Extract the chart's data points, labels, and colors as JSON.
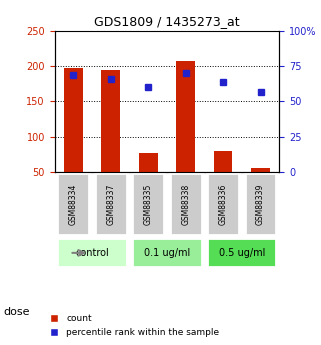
{
  "title": "GDS1809 / 1435273_at",
  "samples": [
    "GSM88334",
    "GSM88337",
    "GSM88335",
    "GSM88338",
    "GSM88336",
    "GSM88339"
  ],
  "counts": [
    197,
    195,
    77,
    208,
    80,
    55
  ],
  "percentile_ranks": [
    69,
    66,
    60,
    70,
    64,
    57
  ],
  "ylim_left": [
    50,
    250
  ],
  "ylim_right": [
    0,
    100
  ],
  "yticks_left": [
    50,
    100,
    150,
    200,
    250
  ],
  "yticks_right": [
    0,
    25,
    50,
    75,
    100
  ],
  "ytick_labels_left": [
    "50",
    "100",
    "150",
    "200",
    "250"
  ],
  "ytick_labels_right": [
    "0",
    "25",
    "50",
    "75",
    "100%"
  ],
  "bar_color": "#cc2200",
  "dot_color": "#2222cc",
  "dose_groups": [
    {
      "label": "control",
      "samples": [
        0,
        1
      ],
      "color": "#ccffcc"
    },
    {
      "label": "0.1 ug/ml",
      "samples": [
        2,
        3
      ],
      "color": "#99ee99"
    },
    {
      "label": "0.5 ug/ml",
      "samples": [
        4,
        5
      ],
      "color": "#55dd55"
    }
  ],
  "left_axis_color": "#cc2200",
  "right_axis_color": "#2222cc",
  "grid_yticks": [
    100,
    150,
    200
  ],
  "dose_label": "dose",
  "legend_count": "count",
  "legend_pct": "percentile rank within the sample",
  "sample_box_color": "#cccccc",
  "bar_bottom": 50
}
